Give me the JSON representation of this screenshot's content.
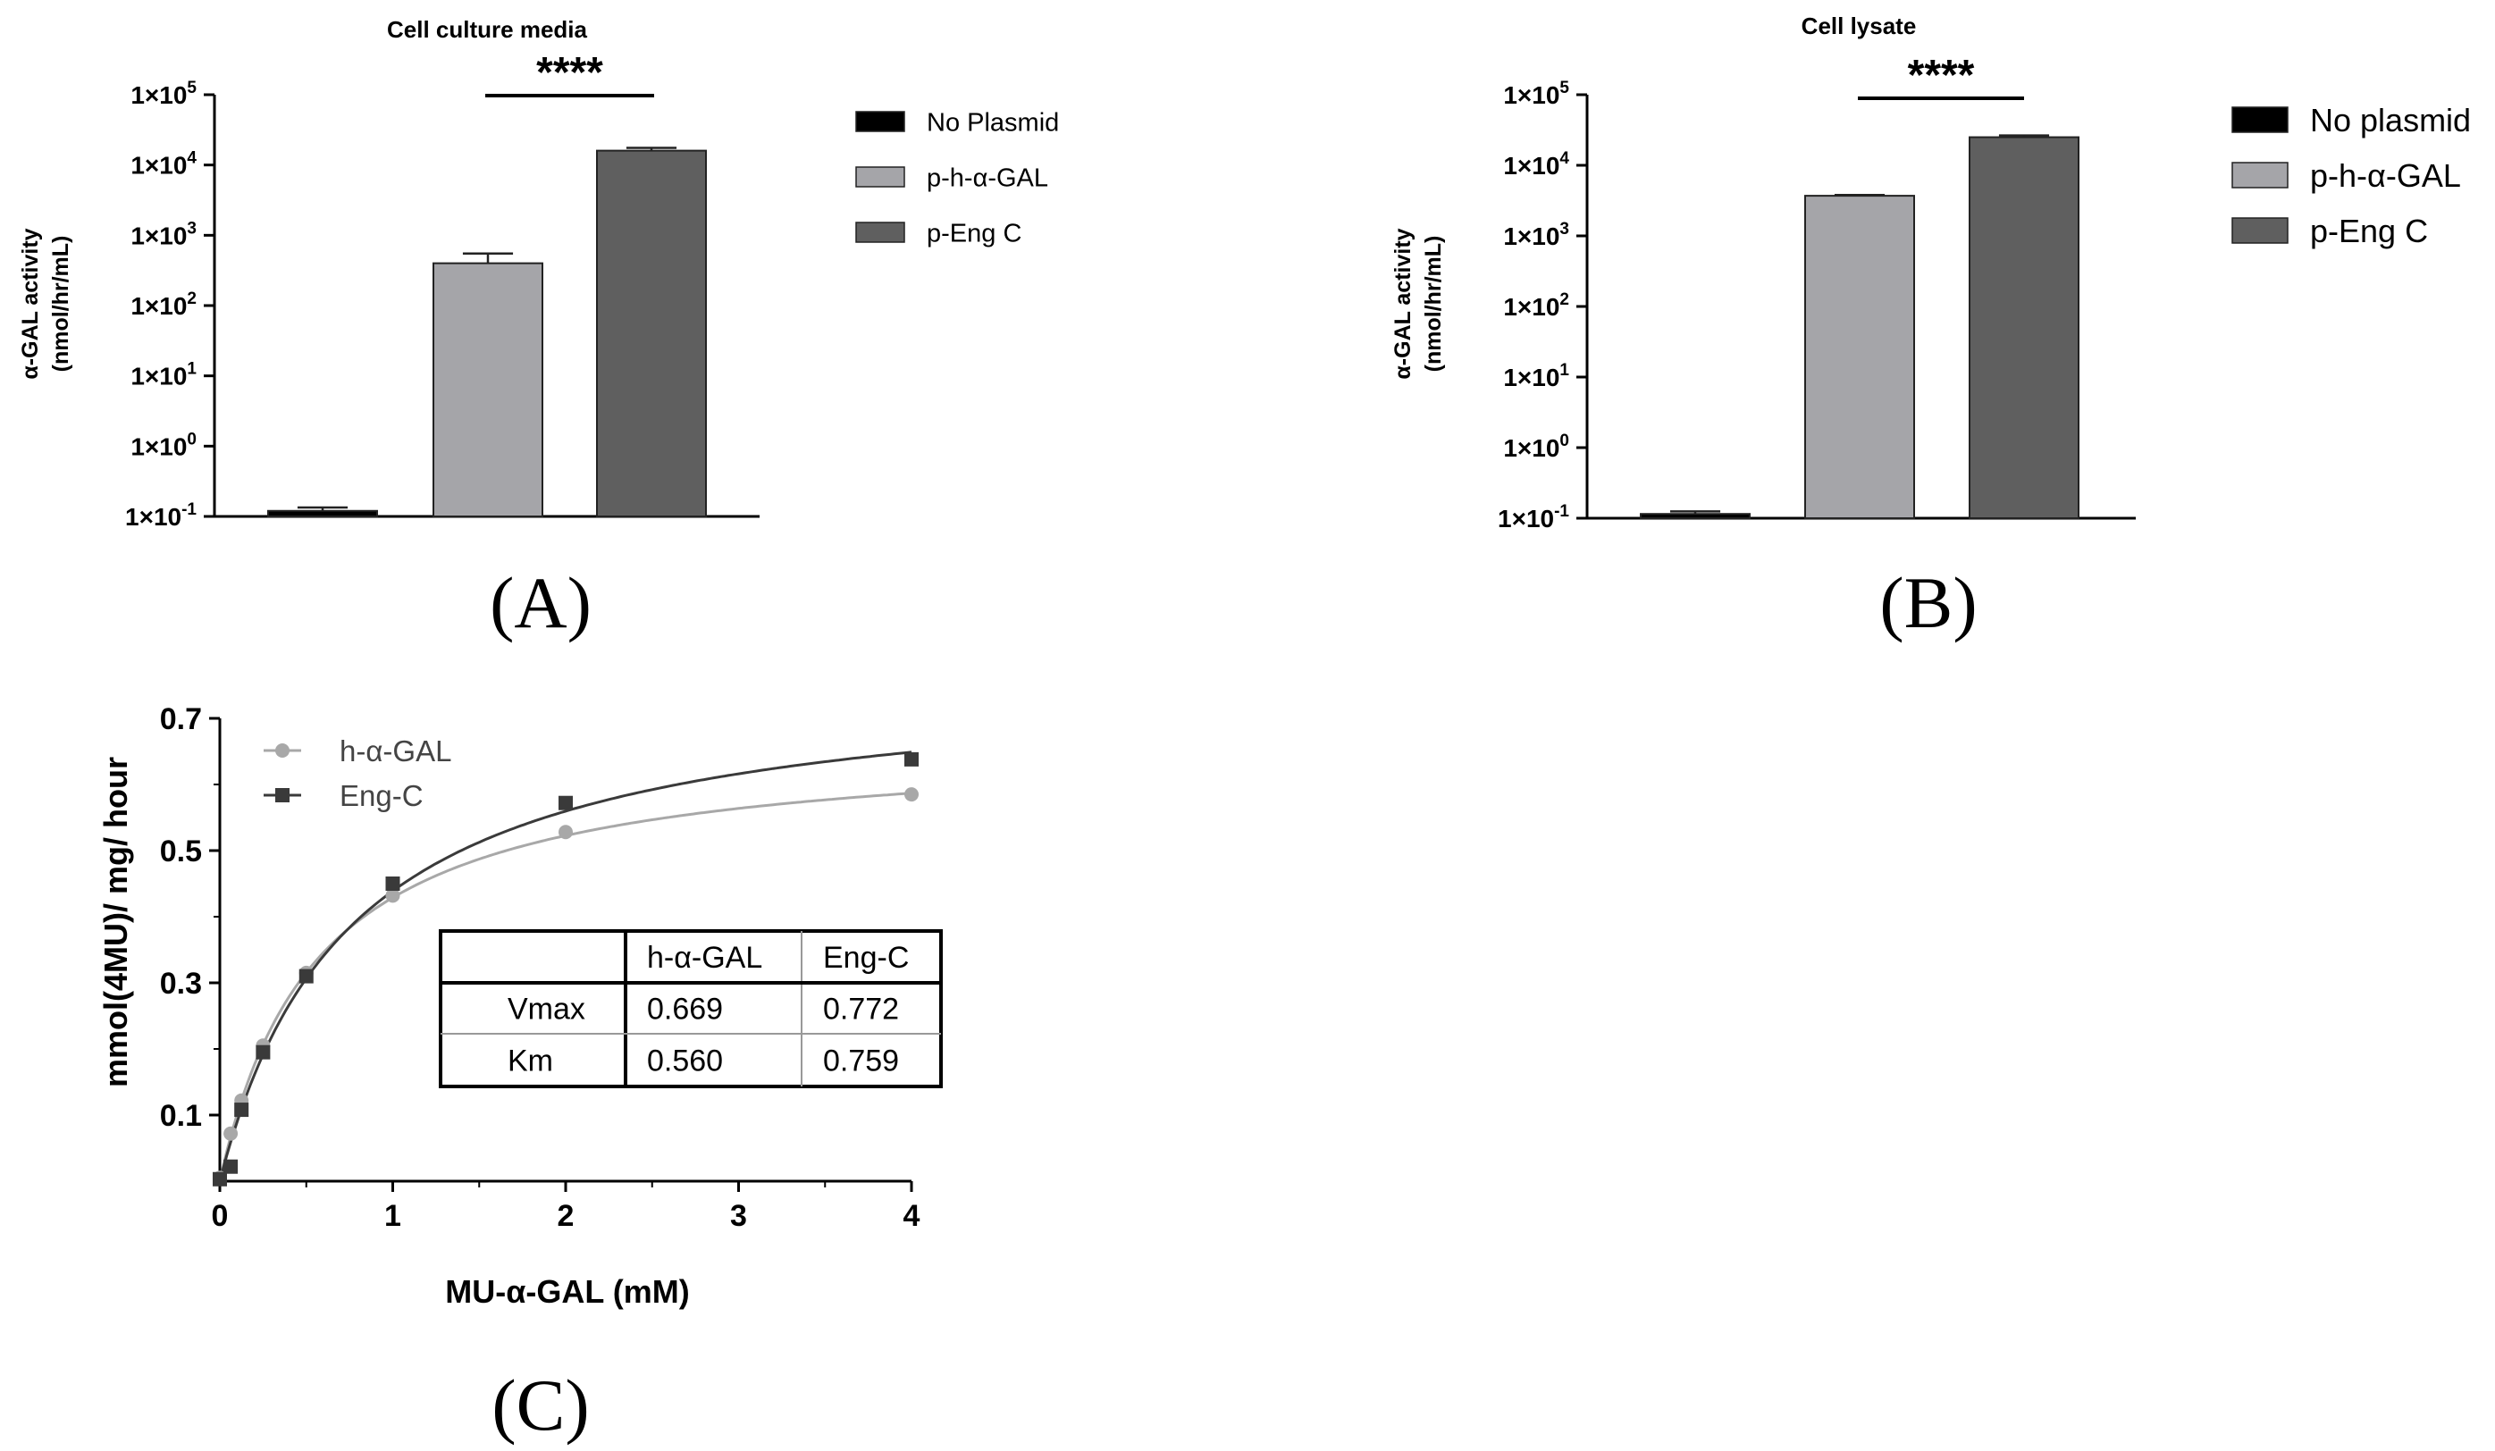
{
  "panels": {
    "A": "(A)",
    "B": "(B)",
    "C": "(C)"
  },
  "chart_data": [
    {
      "id": "A",
      "type": "bar",
      "title": "Cell culture media",
      "ylabel_line1": "α-GAL activity",
      "ylabel_line2": "(nmol/hr/mL)",
      "yscale": "log",
      "ylim_exp": [
        -1,
        5
      ],
      "ytick_base": "1×10",
      "ytick_exps": [
        "-1",
        "0",
        "1",
        "2",
        "3",
        "4",
        "5"
      ],
      "categories": [
        "No Plasmid",
        "p-h-α-GAL",
        "p-Eng C"
      ],
      "values": [
        0.12,
        400,
        16000
      ],
      "errors": [
        0.014,
        150,
        1500
      ],
      "colors": [
        "#000000",
        "#a5a5a9",
        "#5f5f5f"
      ],
      "significance": "****",
      "legend_position": "right"
    },
    {
      "id": "B",
      "type": "bar",
      "title": "Cell lysate",
      "ylabel_line1": "α-GAL activity",
      "ylabel_line2": "(nmol/hr/mL)",
      "yscale": "log",
      "ylim_exp": [
        -1,
        5
      ],
      "ytick_base": "1×10",
      "ytick_exps": [
        "-1",
        "0",
        "1",
        "2",
        "3",
        "4",
        "5"
      ],
      "categories": [
        "No plasmid",
        "p-h-α-GAL",
        "p-Eng C"
      ],
      "values": [
        0.115,
        3700,
        25000
      ],
      "errors": [
        0.01,
        100,
        1500
      ],
      "colors": [
        "#000000",
        "#a5a5a9",
        "#5f5f5f"
      ],
      "significance": "****",
      "legend_position": "right"
    },
    {
      "id": "C",
      "type": "scatter",
      "xlabel": "MU-α-GAL (mM)",
      "ylabel": "mmol(4MU)/ mg/ hour",
      "xlim": [
        0,
        4
      ],
      "ylim": [
        0,
        0.7
      ],
      "xticks": [
        "0",
        "1",
        "2",
        "3",
        "4"
      ],
      "yticks": [
        "0.1",
        "0.3",
        "0.5",
        "0.7"
      ],
      "series": [
        {
          "name": "h-α-GAL",
          "marker": "circle",
          "color": "#a8a8a8",
          "x": [
            0,
            0.0625,
            0.125,
            0.25,
            0.5,
            1,
            2,
            4
          ],
          "y": [
            0.005,
            0.072,
            0.122,
            0.205,
            0.315,
            0.432,
            0.528,
            0.585
          ],
          "fit": {
            "Vmax": 0.669,
            "Km": 0.56
          }
        },
        {
          "name": "Eng-C",
          "marker": "square",
          "color": "#3a3a3a",
          "x": [
            0,
            0.0625,
            0.125,
            0.25,
            0.5,
            1,
            2,
            4
          ],
          "y": [
            0.003,
            0.022,
            0.108,
            0.195,
            0.31,
            0.45,
            0.572,
            0.638
          ],
          "fit": {
            "Vmax": 0.772,
            "Km": 0.759
          }
        }
      ],
      "legend_position": "top-left",
      "inset_table": {
        "headers": [
          "",
          "h-α-GAL",
          "Eng-C"
        ],
        "rows": [
          [
            "Vmax",
            "0.669",
            "0.772"
          ],
          [
            "Km",
            "0.560",
            "0.759"
          ]
        ]
      }
    }
  ]
}
